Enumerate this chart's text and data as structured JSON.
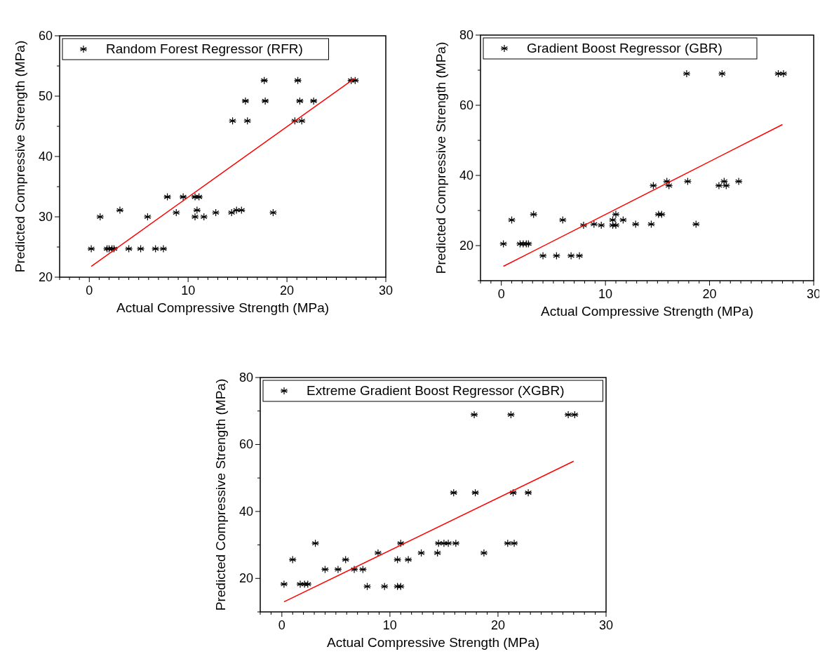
{
  "chart_data": [
    {
      "type": "scatter",
      "xlabel": "Actual Compressive Strength (MPa)",
      "ylabel": "Predicted Compressive Strength (MPa)",
      "xlim": [
        -3,
        30
      ],
      "ylim": [
        20,
        60
      ],
      "xticks": [
        {
          "value": -3,
          "label": null
        },
        {
          "value": -2,
          "label": null
        },
        {
          "value": -1,
          "label": null
        },
        0,
        {
          "value": 1,
          "label": null
        },
        {
          "value": 2,
          "label": null
        },
        {
          "value": 3,
          "label": null
        },
        {
          "value": 4,
          "label": null
        },
        {
          "value": 5,
          "label": null
        },
        {
          "value": 6,
          "label": null
        },
        {
          "value": 7,
          "label": null
        },
        {
          "value": 8,
          "label": null
        },
        {
          "value": 9,
          "label": null
        },
        10,
        {
          "value": 11,
          "label": null
        },
        {
          "value": 12,
          "label": null
        },
        {
          "value": 13,
          "label": null
        },
        {
          "value": 14,
          "label": null
        },
        {
          "value": 15,
          "label": null
        },
        {
          "value": 16,
          "label": null
        },
        {
          "value": 17,
          "label": null
        },
        {
          "value": 18,
          "label": null
        },
        {
          "value": 19,
          "label": null
        },
        20,
        {
          "value": 21,
          "label": null
        },
        {
          "value": 22,
          "label": null
        },
        {
          "value": 23,
          "label": null
        },
        {
          "value": 24,
          "label": null
        },
        {
          "value": 25,
          "label": null
        },
        {
          "value": 26,
          "label": null
        },
        {
          "value": 27,
          "label": null
        },
        {
          "value": 28,
          "label": null
        },
        {
          "value": 29,
          "label": null
        },
        30
      ],
      "yticks": [
        20,
        {
          "value": 25,
          "label": null
        },
        30,
        {
          "value": 35,
          "label": null
        },
        40,
        {
          "value": 45,
          "label": null
        },
        50,
        {
          "value": 55,
          "label": null
        },
        60
      ],
      "legend": "top left",
      "marker": "cross",
      "grid": false,
      "series": [
        {
          "name": "Random Forest Regressor (RFR)",
          "color": "#000000",
          "x": [
            0.2,
            1.1,
            1.8,
            2.0,
            2.3,
            2.5,
            3.1,
            4.0,
            5.2,
            5.9,
            6.7,
            7.5,
            7.9,
            8.8,
            9.5,
            10.7,
            11.1,
            10.7,
            10.9,
            11.6,
            12.8,
            14.4,
            14.9,
            15.4,
            14.5,
            15.8,
            16.0,
            17.7,
            17.8,
            18.6,
            20.8,
            21.5,
            21.1,
            21.3,
            22.7,
            26.5,
            26.9
          ],
          "values": [
            24.7,
            30.0,
            24.7,
            24.7,
            24.7,
            24.7,
            31.1,
            24.7,
            24.7,
            30.0,
            24.7,
            24.7,
            33.3,
            30.7,
            33.3,
            33.3,
            33.3,
            30.0,
            31.1,
            30.0,
            30.7,
            30.7,
            31.1,
            31.1,
            45.9,
            49.2,
            45.9,
            52.6,
            49.2,
            30.7,
            45.9,
            45.9,
            52.6,
            49.2,
            49.2,
            52.6,
            52.6
          ]
        },
        {
          "type": "line",
          "marker": "none",
          "color": "#ff0000",
          "x": [
            0.2,
            26.8
          ],
          "values": [
            21.8,
            52.9
          ]
        }
      ]
    },
    {
      "type": "scatter",
      "xlabel": "Actual Compressive Strength (MPa)",
      "ylabel": "Predicted Compressive Strength (MPa)",
      "xlim": [
        -2,
        30
      ],
      "ylim": [
        10,
        80
      ],
      "xticks": [
        {
          "value": -2,
          "label": null
        },
        {
          "value": -1,
          "label": null
        },
        0,
        {
          "value": 1,
          "label": null
        },
        {
          "value": 2,
          "label": null
        },
        {
          "value": 3,
          "label": null
        },
        {
          "value": 4,
          "label": null
        },
        {
          "value": 5,
          "label": null
        },
        {
          "value": 6,
          "label": null
        },
        {
          "value": 7,
          "label": null
        },
        {
          "value": 8,
          "label": null
        },
        {
          "value": 9,
          "label": null
        },
        10,
        {
          "value": 11,
          "label": null
        },
        {
          "value": 12,
          "label": null
        },
        {
          "value": 13,
          "label": null
        },
        {
          "value": 14,
          "label": null
        },
        {
          "value": 15,
          "label": null
        },
        {
          "value": 16,
          "label": null
        },
        {
          "value": 17,
          "label": null
        },
        {
          "value": 18,
          "label": null
        },
        {
          "value": 19,
          "label": null
        },
        20,
        {
          "value": 21,
          "label": null
        },
        {
          "value": 22,
          "label": null
        },
        {
          "value": 23,
          "label": null
        },
        {
          "value": 24,
          "label": null
        },
        {
          "value": 25,
          "label": null
        },
        {
          "value": 26,
          "label": null
        },
        {
          "value": 27,
          "label": null
        },
        {
          "value": 28,
          "label": null
        },
        {
          "value": 29,
          "label": null
        },
        30
      ],
      "yticks": [
        {
          "value": 10,
          "label": null
        },
        20,
        {
          "value": 30,
          "label": null
        },
        40,
        {
          "value": 50,
          "label": null
        },
        60,
        {
          "value": 70,
          "label": null
        },
        80
      ],
      "legend": "top left",
      "marker": "cross",
      "grid": false,
      "series": [
        {
          "name": "Gradient Boost Regressor (GBR)",
          "color": "#000000",
          "x": [
            0.2,
            1.0,
            1.8,
            2.1,
            2.4,
            2.6,
            3.1,
            4.0,
            5.3,
            5.9,
            6.7,
            7.5,
            7.9,
            8.9,
            9.6,
            10.7,
            10.7,
            11.0,
            11.0,
            11.7,
            12.9,
            14.4,
            14.6,
            15.1,
            15.4,
            15.9,
            16.1,
            17.8,
            17.9,
            18.7,
            20.9,
            21.2,
            21.4,
            21.6,
            22.8,
            26.6,
            27.1
          ],
          "values": [
            20.5,
            27.3,
            20.5,
            20.5,
            20.5,
            20.5,
            28.9,
            17.1,
            17.1,
            27.3,
            17.1,
            17.1,
            25.8,
            26.1,
            25.8,
            27.3,
            25.8,
            25.8,
            28.9,
            27.3,
            26.1,
            26.1,
            37.1,
            28.9,
            28.9,
            38.3,
            37.1,
            69.0,
            38.3,
            26.1,
            37.1,
            69.0,
            38.3,
            37.1,
            38.3,
            69.0,
            69.0
          ]
        },
        {
          "type": "line",
          "marker": "none",
          "color": "#ff0000",
          "x": [
            0.2,
            27.0
          ],
          "values": [
            14.1,
            54.5
          ]
        }
      ]
    },
    {
      "type": "scatter",
      "xlabel": "Actual Compressive Strength (MPa)",
      "ylabel": "Predicted Compressive Strength (MPa)",
      "xlim": [
        -2,
        30
      ],
      "ylim": [
        10,
        80
      ],
      "xticks": [
        {
          "value": -2,
          "label": null
        },
        {
          "value": -1,
          "label": null
        },
        0,
        {
          "value": 1,
          "label": null
        },
        {
          "value": 2,
          "label": null
        },
        {
          "value": 3,
          "label": null
        },
        {
          "value": 4,
          "label": null
        },
        {
          "value": 5,
          "label": null
        },
        {
          "value": 6,
          "label": null
        },
        {
          "value": 7,
          "label": null
        },
        {
          "value": 8,
          "label": null
        },
        {
          "value": 9,
          "label": null
        },
        10,
        {
          "value": 11,
          "label": null
        },
        {
          "value": 12,
          "label": null
        },
        {
          "value": 13,
          "label": null
        },
        {
          "value": 14,
          "label": null
        },
        {
          "value": 15,
          "label": null
        },
        {
          "value": 16,
          "label": null
        },
        {
          "value": 17,
          "label": null
        },
        {
          "value": 18,
          "label": null
        },
        {
          "value": 19,
          "label": null
        },
        20,
        {
          "value": 21,
          "label": null
        },
        {
          "value": 22,
          "label": null
        },
        {
          "value": 23,
          "label": null
        },
        {
          "value": 24,
          "label": null
        },
        {
          "value": 25,
          "label": null
        },
        {
          "value": 26,
          "label": null
        },
        {
          "value": 27,
          "label": null
        },
        {
          "value": 28,
          "label": null
        },
        {
          "value": 29,
          "label": null
        },
        30
      ],
      "yticks": [
        {
          "value": 10,
          "label": null
        },
        20,
        {
          "value": 30,
          "label": null
        },
        40,
        {
          "value": 50,
          "label": null
        },
        60,
        {
          "value": 70,
          "label": null
        },
        80
      ],
      "legend": "top left",
      "marker": "cross",
      "grid": false,
      "series": [
        {
          "name": "Extreme Gradient Boost Regressor (XGBR)",
          "color": "#000000",
          "x": [
            0.2,
            1.0,
            1.7,
            2.1,
            2.4,
            3.1,
            4.0,
            5.2,
            5.9,
            6.7,
            7.5,
            7.9,
            8.9,
            9.5,
            10.7,
            11.0,
            10.7,
            11.0,
            11.7,
            12.9,
            14.4,
            14.5,
            15.0,
            15.4,
            15.9,
            16.1,
            17.8,
            17.9,
            18.7,
            20.9,
            21.2,
            21.4,
            21.5,
            22.8,
            26.5,
            27.1
          ],
          "values": [
            18.3,
            25.6,
            18.3,
            18.3,
            18.3,
            30.5,
            22.7,
            22.7,
            25.6,
            22.7,
            22.7,
            17.6,
            27.6,
            17.6,
            17.6,
            17.6,
            25.6,
            30.5,
            25.6,
            27.6,
            27.6,
            30.5,
            30.5,
            30.5,
            45.6,
            30.5,
            68.9,
            45.6,
            27.6,
            30.5,
            68.9,
            45.6,
            30.5,
            45.6,
            68.9,
            68.9
          ]
        },
        {
          "type": "line",
          "marker": "none",
          "color": "#ff0000",
          "x": [
            0.2,
            27.0
          ],
          "values": [
            13.0,
            55.0
          ]
        }
      ]
    }
  ]
}
